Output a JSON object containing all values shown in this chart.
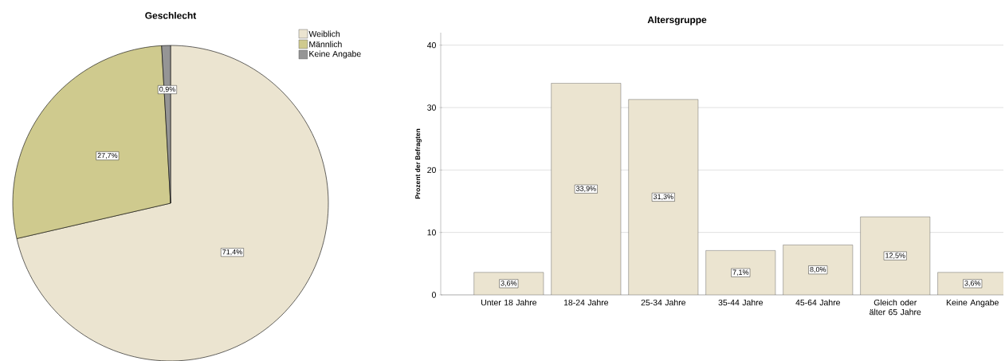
{
  "chart_data": [
    {
      "type": "pie",
      "title": "Geschlecht",
      "categories": [
        "Weiblich",
        "Männlich",
        "Keine Angabe"
      ],
      "values": [
        71.4,
        27.7,
        0.9
      ],
      "colors": [
        "#ebe4d0",
        "#cfca8e",
        "#959595"
      ],
      "value_labels": [
        "71,4%",
        "27,7%",
        "0,9%"
      ],
      "legend": "top right"
    },
    {
      "type": "bar",
      "title": "Altersgruppe",
      "ylabel": "Prozent der Befragten",
      "categories": [
        "Unter 18 Jahre",
        "18-24 Jahre",
        "25-34 Jahre",
        "35-44 Jahre",
        "45-64 Jahre",
        "Gleich oder älter 65 Jahre",
        "Keine Angabe"
      ],
      "values": [
        3.6,
        33.9,
        31.3,
        7.1,
        8.0,
        12.5,
        3.6
      ],
      "color": "#ebe4d0",
      "value_labels": [
        "3,6%",
        "33,9%",
        "31,3%",
        "7,1%",
        "8,0%",
        "12,5%",
        "3,6%"
      ],
      "ylim": [
        0,
        42
      ],
      "yticks": [
        0,
        10,
        20,
        30,
        40
      ],
      "grid": "y"
    }
  ]
}
